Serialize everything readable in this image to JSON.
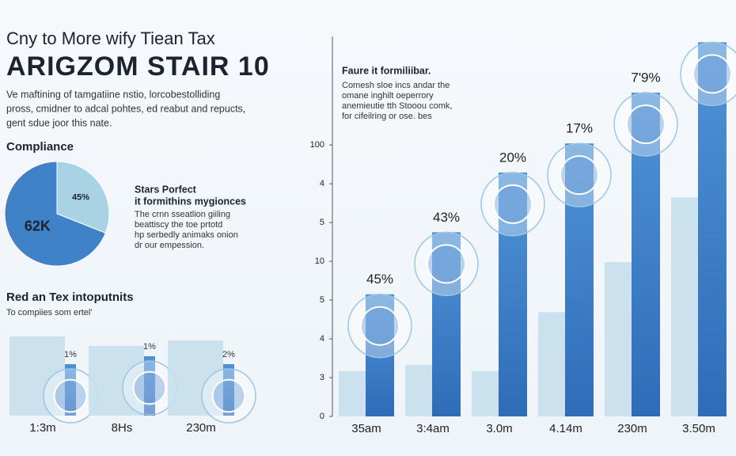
{
  "header": {
    "kicker": "Cny to More wify Tiean Tax",
    "title": "ARIGZOM STAIR 10",
    "intro": [
      "Ve maftining of tamgatiine nstio, lorcobestolliding",
      "pross, cmidner to adcal pohtes, ed reabut and repucts,",
      "gent sdue joor this nate."
    ]
  },
  "side": {
    "heading": [
      "Stars Porfect",
      "it formithins mygionces"
    ],
    "lines": [
      "The crnn sseatlion giiling",
      "beattiscy the toe prtotd",
      "hp serbedly animaks onion",
      "dr our empession."
    ]
  },
  "chart_data": [
    {
      "type": "pie",
      "title": "Compliance",
      "categories": [
        "45%",
        "62K"
      ],
      "values": [
        31,
        69
      ],
      "colors": [
        "#a9d2e4",
        "#3f82c8"
      ]
    },
    {
      "type": "bar",
      "title": "Red an Tex intoputnits",
      "subtitle": "To compiies som ertel'",
      "categories": [
        "1:3m",
        "8Hs",
        "230m"
      ],
      "ylim": [
        0,
        110
      ],
      "series": [
        {
          "color": "#c6e0ec",
          "values": [
            100,
            88,
            95
          ]
        },
        {
          "color": "#3f82c8",
          "values": [
            65,
            75,
            65
          ]
        }
      ],
      "annotations": [
        "1%",
        "1%",
        "2%"
      ]
    },
    {
      "type": "bar",
      "title": "Faure it formiliibar.",
      "subtitle": [
        "Comesh sloe incs andar the",
        "omane inghilt oeperrory",
        "anemieutie tth Stooou comk,",
        "for cifeilring or ose. bes"
      ],
      "categories": [
        "35am",
        "3:4am",
        "3.0m",
        "4.14m",
        "230m",
        "3.50m"
      ],
      "ylim": [
        0,
        9.8
      ],
      "yticks": [
        {
          "value": 0,
          "label": "0"
        },
        {
          "value": 1,
          "label": "3"
        },
        {
          "value": 2,
          "label": "4"
        },
        {
          "value": 3,
          "label": "5"
        },
        {
          "value": 4,
          "label": "10"
        },
        {
          "value": 5,
          "label": "5"
        },
        {
          "value": 6,
          "label": "4"
        },
        {
          "value": 7,
          "label": "100"
        }
      ],
      "series": [
        {
          "color": "#c6e0ec",
          "values": [
            1.17,
            1.33,
            1.17,
            2.69,
            3.98,
            5.65
          ]
        },
        {
          "color": "#3f82c8",
          "values": [
            3.15,
            4.75,
            6.29,
            7.04,
            8.35,
            9.65
          ]
        }
      ],
      "annotations": [
        "45%",
        "43%",
        "20%",
        "17%",
        "7'9%"
      ]
    }
  ]
}
